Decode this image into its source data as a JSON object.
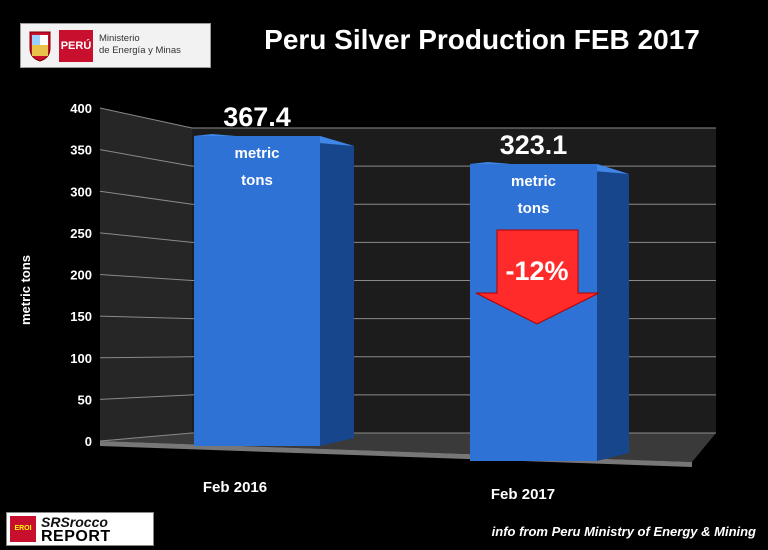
{
  "header": {
    "title": "Peru Silver Production FEB 2017",
    "logo": {
      "country": "PERÚ",
      "ministry_line1": "Ministerio",
      "ministry_line2": "de Energía y Minas"
    }
  },
  "footer": {
    "source": "info from Peru Ministry of Energy & Mining",
    "brand_badge": "EROI",
    "brand_line1": "SRSrocco",
    "brand_line2": "REPORT"
  },
  "chart_data": {
    "type": "bar",
    "title": "Peru Silver Production FEB 2017",
    "categories": [
      "Feb 2016",
      "Feb 2017"
    ],
    "values": [
      367.4,
      323.1
    ],
    "value_labels": [
      "367.4",
      "323.1"
    ],
    "unit_label": [
      "metric",
      "tons"
    ],
    "ylabel": "metric tons",
    "ylim": [
      0,
      400
    ],
    "yticks": [
      0,
      50,
      100,
      150,
      200,
      250,
      300,
      350,
      400
    ],
    "grid": true,
    "annotation": {
      "text": "-12%",
      "color": "#ff2a2a"
    },
    "colors": {
      "bar": "#2f72d6",
      "background": "#000000"
    }
  }
}
